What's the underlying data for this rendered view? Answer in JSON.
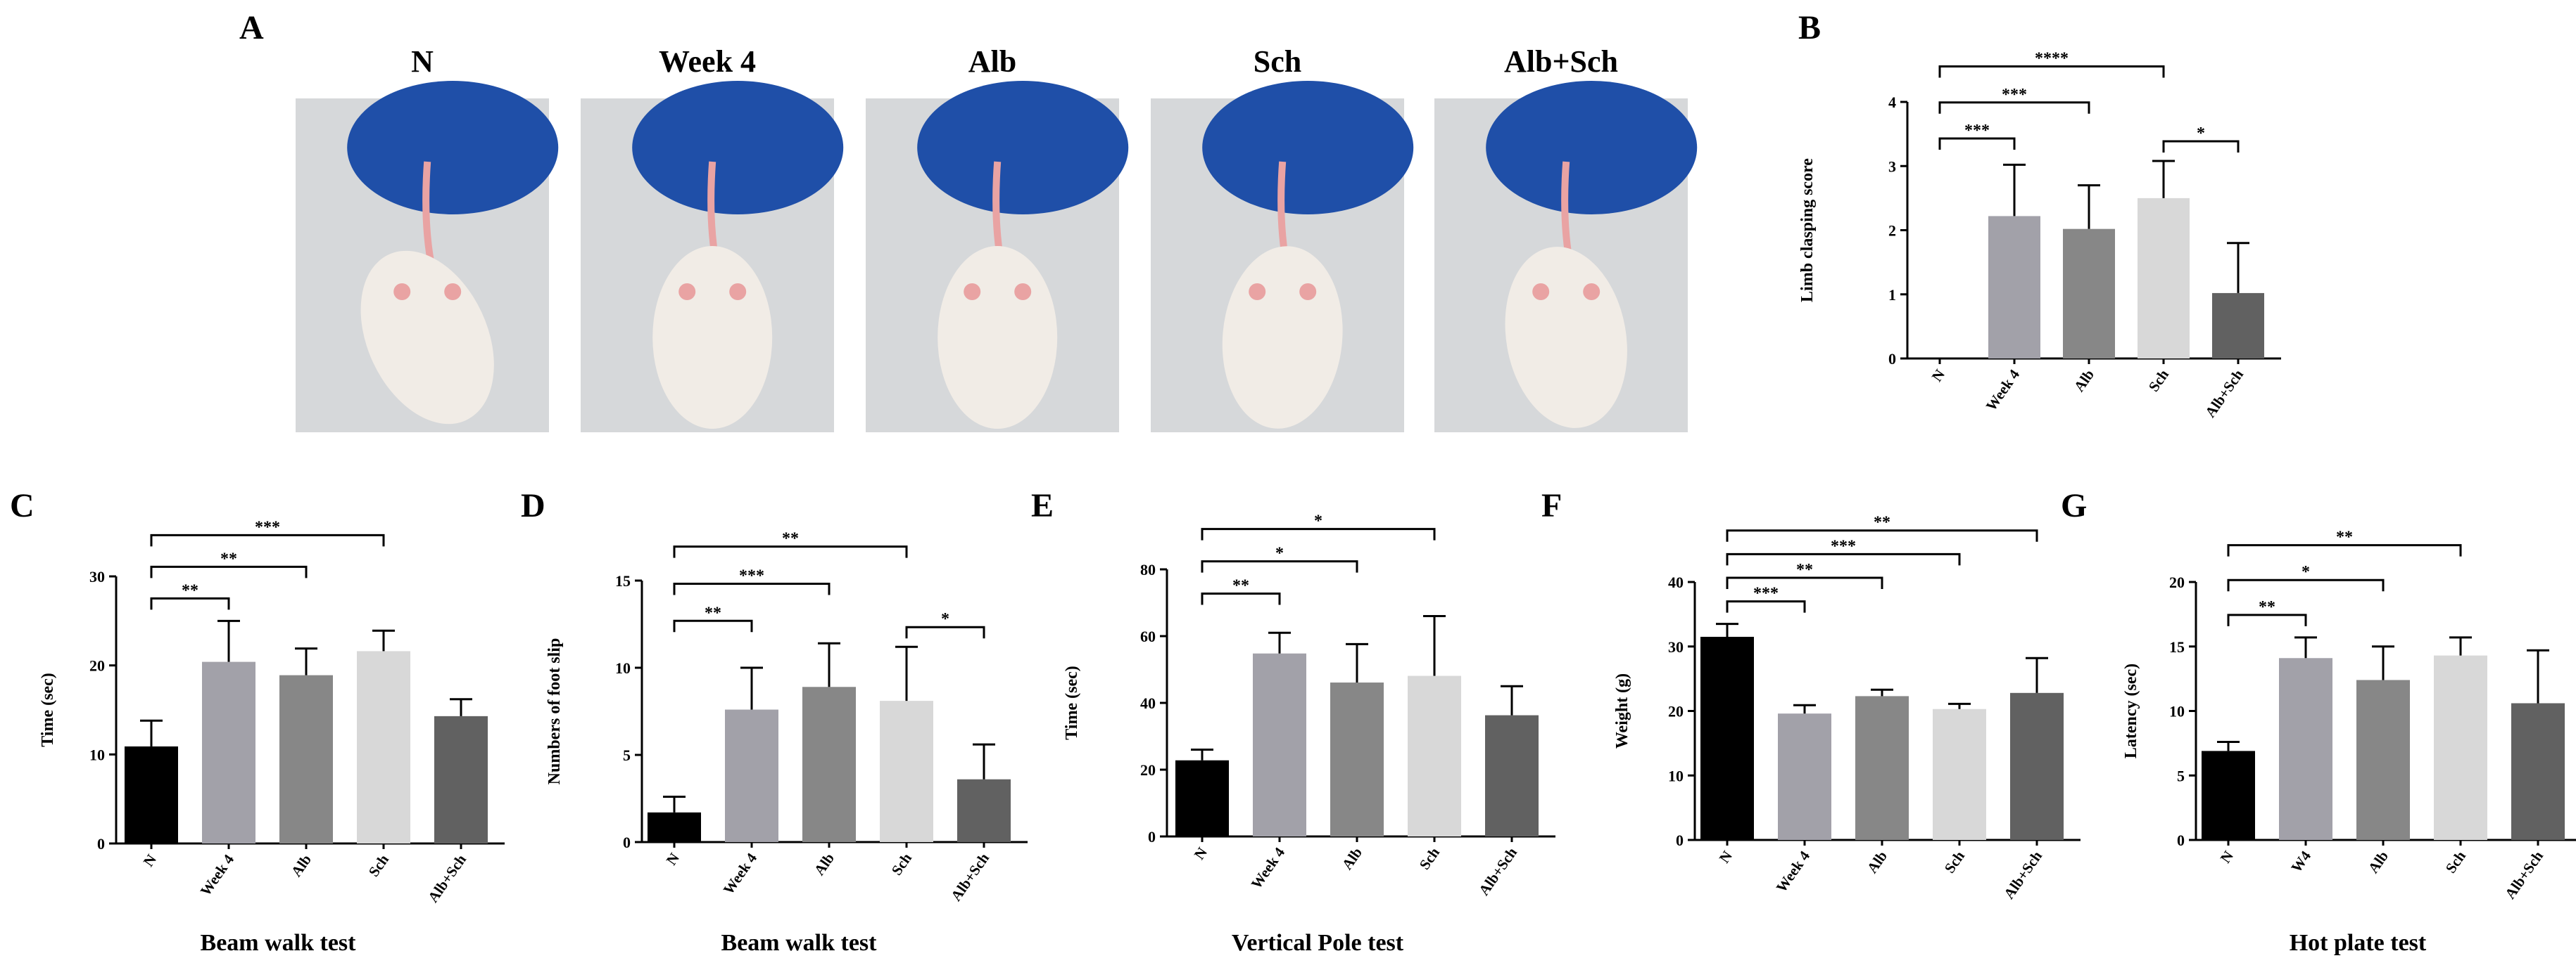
{
  "panel_a": {
    "letter": "A",
    "groups": [
      "N",
      "Week 4",
      "Alb",
      "Sch",
      "Alb+Sch"
    ],
    "colors": {
      "background": "#d6d8da",
      "glove": "#1f4fa8",
      "mouse": "#f1ece6",
      "pink": "#e9a3a3"
    }
  },
  "chart_data": [
    {
      "id": "B",
      "letter": "B",
      "type": "bar",
      "title": "",
      "xlabel": "",
      "ylabel": "Limb clasping score",
      "categories": [
        "N",
        "Week 4",
        "Alb",
        "Sch",
        "Alb+Sch"
      ],
      "values": [
        0,
        2.22,
        2.02,
        2.5,
        1.02
      ],
      "errors": [
        0,
        0.8,
        0.68,
        0.58,
        0.78
      ],
      "ylim": [
        0,
        4
      ],
      "yticks": [
        "0",
        "1",
        "2",
        "3",
        "4"
      ],
      "colors": [
        "#000000",
        "#a2a1a9",
        "#878787",
        "#d8d8d8",
        "#616161"
      ],
      "brackets": [
        {
          "from": 0,
          "to": 1,
          "label": "***"
        },
        {
          "from": 0,
          "to": 2,
          "label": "***"
        },
        {
          "from": 0,
          "to": 3,
          "label": "****"
        },
        {
          "from": 3,
          "to": 4,
          "label": "*"
        }
      ]
    },
    {
      "id": "C",
      "letter": "C",
      "type": "bar",
      "title": "Beam walk test",
      "xlabel": "",
      "ylabel": "Time (sec)",
      "categories": [
        "N",
        "Week 4",
        "Alb",
        "Sch",
        "Alb+Sch"
      ],
      "values": [
        10.9,
        20.4,
        18.9,
        21.6,
        14.3
      ],
      "errors": [
        2.9,
        4.6,
        3.0,
        2.3,
        1.9
      ],
      "ylim": [
        0,
        30
      ],
      "yticks": [
        "0",
        "10",
        "20",
        "30"
      ],
      "colors": [
        "#000000",
        "#a2a1a9",
        "#878787",
        "#d8d8d8",
        "#616161"
      ],
      "brackets": [
        {
          "from": 0,
          "to": 1,
          "label": "**"
        },
        {
          "from": 0,
          "to": 2,
          "label": "**"
        },
        {
          "from": 0,
          "to": 3,
          "label": "***"
        }
      ]
    },
    {
      "id": "D",
      "letter": "D",
      "type": "bar",
      "title": "Beam walk test",
      "xlabel": "",
      "ylabel": "Numbers of foot slip",
      "categories": [
        "N",
        "Week 4",
        "Alb",
        "Sch",
        "Alb+Sch"
      ],
      "values": [
        1.7,
        7.6,
        8.9,
        8.1,
        3.6
      ],
      "errors": [
        0.9,
        2.4,
        2.5,
        3.1,
        2.0
      ],
      "ylim": [
        0,
        15
      ],
      "yticks": [
        "0",
        "5",
        "10",
        "15"
      ],
      "colors": [
        "#000000",
        "#a2a1a9",
        "#878787",
        "#d8d8d8",
        "#616161"
      ],
      "brackets": [
        {
          "from": 0,
          "to": 1,
          "label": "**"
        },
        {
          "from": 0,
          "to": 2,
          "label": "***"
        },
        {
          "from": 0,
          "to": 3,
          "label": "**"
        },
        {
          "from": 3,
          "to": 4,
          "label": "*"
        }
      ]
    },
    {
      "id": "E",
      "letter": "E",
      "type": "bar",
      "title": "Vertical Pole test",
      "xlabel": "",
      "ylabel": "Time (sec)",
      "categories": [
        "N",
        "Week 4",
        "Alb",
        "Sch",
        "Alb+Sch"
      ],
      "values": [
        22.8,
        54.8,
        46.1,
        48.1,
        36.3
      ],
      "errors": [
        3.2,
        6.2,
        11.5,
        17.9,
        8.7
      ],
      "ylim": [
        0,
        80
      ],
      "yticks": [
        "0",
        "20",
        "40",
        "60",
        "80"
      ],
      "colors": [
        "#000000",
        "#a2a1a9",
        "#878787",
        "#d8d8d8",
        "#616161"
      ],
      "brackets": [
        {
          "from": 0,
          "to": 1,
          "label": "**"
        },
        {
          "from": 0,
          "to": 2,
          "label": "*"
        },
        {
          "from": 0,
          "to": 3,
          "label": "*"
        }
      ]
    },
    {
      "id": "F",
      "letter": "F",
      "type": "bar",
      "title": "",
      "xlabel": "",
      "ylabel": "Weight (g)",
      "categories": [
        "N",
        "Week 4",
        "Alb",
        "Sch",
        "Alb+Sch"
      ],
      "values": [
        31.5,
        19.6,
        22.3,
        20.3,
        22.8
      ],
      "errors": [
        2.0,
        1.3,
        1.0,
        0.8,
        5.4
      ],
      "ylim": [
        0,
        40
      ],
      "yticks": [
        "0",
        "10",
        "20",
        "30",
        "40"
      ],
      "colors": [
        "#000000",
        "#a2a1a9",
        "#878787",
        "#d8d8d8",
        "#616161"
      ],
      "brackets": [
        {
          "from": 0,
          "to": 1,
          "label": "***"
        },
        {
          "from": 0,
          "to": 2,
          "label": "**"
        },
        {
          "from": 0,
          "to": 3,
          "label": "***"
        },
        {
          "from": 0,
          "to": 4,
          "label": "**"
        }
      ]
    },
    {
      "id": "G",
      "letter": "G",
      "type": "bar",
      "title": "Hot plate test",
      "xlabel": "",
      "ylabel": "Latency (sec)",
      "categories": [
        "N",
        "W4",
        "Alb",
        "Sch",
        "Alb+Sch"
      ],
      "values": [
        6.9,
        14.1,
        12.4,
        14.3,
        10.6
      ],
      "errors": [
        0.7,
        1.6,
        2.6,
        1.4,
        4.1
      ],
      "ylim": [
        0,
        20
      ],
      "yticks": [
        "0",
        "5",
        "10",
        "15",
        "20"
      ],
      "colors": [
        "#000000",
        "#a2a1a9",
        "#878787",
        "#d8d8d8",
        "#616161"
      ],
      "brackets": [
        {
          "from": 0,
          "to": 1,
          "label": "**"
        },
        {
          "from": 0,
          "to": 2,
          "label": "*"
        },
        {
          "from": 0,
          "to": 3,
          "label": "**"
        }
      ]
    }
  ]
}
